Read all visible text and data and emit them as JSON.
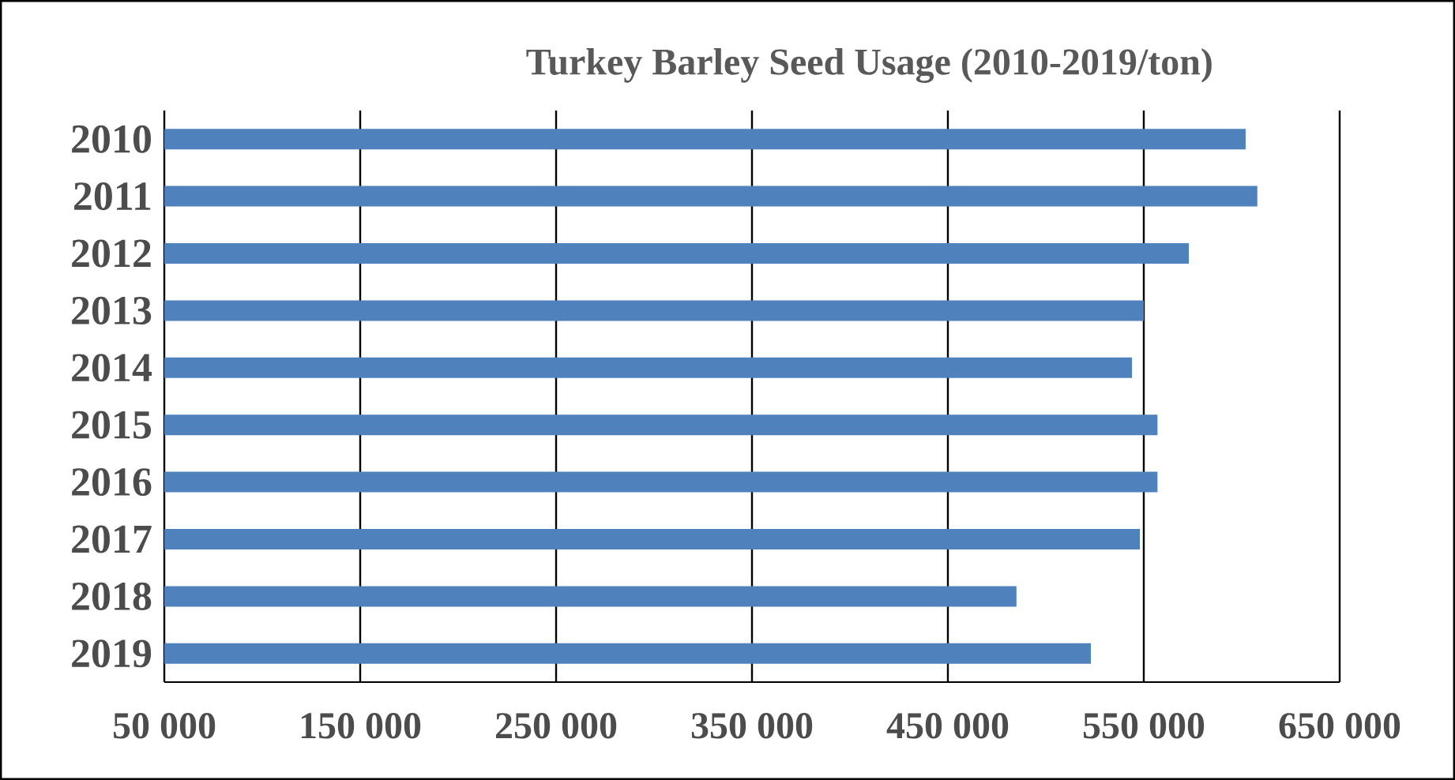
{
  "chart_data": {
    "type": "bar",
    "orientation": "horizontal",
    "title": "Turkey Barley Seed Usage (2010-2019/ton)",
    "categories": [
      "2010",
      "2011",
      "2012",
      "2013",
      "2014",
      "2015",
      "2016",
      "2017",
      "2018",
      "2019"
    ],
    "values": [
      602000,
      608000,
      573000,
      550000,
      544000,
      557000,
      557000,
      548000,
      485000,
      523000
    ],
    "color": "#4f81bd",
    "xlim": [
      50000,
      650000
    ],
    "xticks": [
      {
        "value": 50000,
        "label": "50 000"
      },
      {
        "value": 150000,
        "label": "150 000"
      },
      {
        "value": 250000,
        "label": "250 000"
      },
      {
        "value": 350000,
        "label": "350 000"
      },
      {
        "value": 450000,
        "label": "450 000"
      },
      {
        "value": 550000,
        "label": "550 000"
      },
      {
        "value": 650000,
        "label": "650 000"
      }
    ],
    "grid": "x"
  }
}
